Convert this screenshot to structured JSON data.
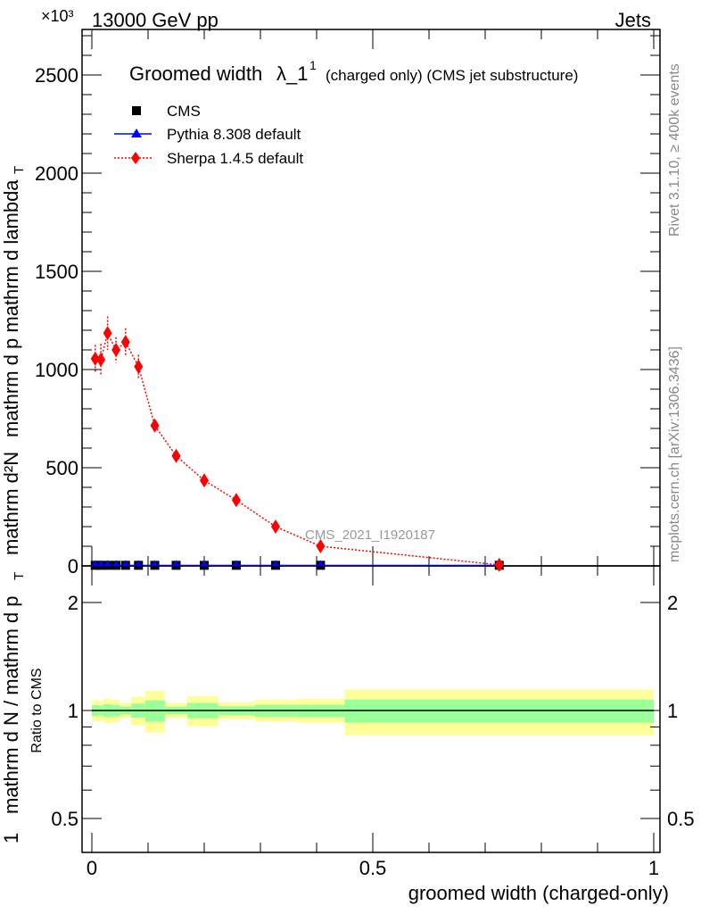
{
  "chart_data": [
    {
      "type": "scatter",
      "panel": "main",
      "title": "Groomed width λ_1^1 (charged only) (CMS jet substructure)",
      "title_main": "Groomed width",
      "title_lambda": "λ_1",
      "title_sup": "1",
      "title_rest": "(charged only) (CMS jet substructure)",
      "top_left_label": "13000 GeV pp",
      "top_right_label": "Jets",
      "exponent_label": "×10³",
      "ylabel_num1": "1",
      "ylabel_den1": "mathrm d N / mathrm d p",
      "ylabel_num2": "mathrm d²N",
      "ylabel_den2": "mathrm d p   mathrm d lambda",
      "ylabel_sub": "T",
      "xlim": [
        -0.0175,
        1.0
      ],
      "ylim": [
        0,
        2727
      ],
      "yticks": [
        "0",
        "500",
        "1000",
        "1500",
        "2000",
        "2500"
      ],
      "legend_position": "top-left",
      "watermark": "CMS_2021_I1920187",
      "bin_edges": [
        0,
        0.0125,
        0.02,
        0.035,
        0.05,
        0.07,
        0.095,
        0.13,
        0.17,
        0.225,
        0.29,
        0.365,
        0.45,
        1.0
      ],
      "x": [
        0.006,
        0.016,
        0.028,
        0.043,
        0.06,
        0.083,
        0.112,
        0.15,
        0.2,
        0.257,
        0.327,
        0.407,
        0.725
      ],
      "series": [
        {
          "name": "CMS",
          "color": "#000000",
          "marker": "square",
          "values": [
            3,
            3,
            3,
            3,
            3,
            3,
            3,
            3,
            3,
            3,
            3,
            3,
            3
          ]
        },
        {
          "name": "Pythia 8.308 default",
          "color": "#0000ff",
          "marker": "triangle",
          "values": [
            3,
            3,
            3,
            3,
            3,
            3,
            3,
            3,
            3,
            3,
            3,
            3,
            3
          ]
        },
        {
          "name": "Sherpa 1.4.5 default",
          "color": "#ff0000",
          "marker": "diamond",
          "values": [
            1055,
            1050,
            1185,
            1100,
            1140,
            1015,
            715,
            560,
            435,
            335,
            200,
            100,
            5
          ],
          "errors": [
            70,
            80,
            85,
            65,
            70,
            60,
            25,
            20,
            15,
            12,
            10,
            8,
            3
          ]
        }
      ],
      "side_label_top": "Rivet 3.1.10, ≥ 400k events",
      "side_label_bottom": "mcplots.cern.ch [arXiv:1306.3436]"
    },
    {
      "type": "area",
      "panel": "ratio",
      "ylabel": "Ratio to CMS",
      "xlabel": "groomed width (charged-only)",
      "yscale": "log",
      "ylim": [
        0.4,
        2.53
      ],
      "yticks": [
        "0.5",
        "1",
        "2"
      ],
      "yticks_right": [
        "0.5",
        "1",
        "2"
      ],
      "xticks": [
        "0",
        "0.5",
        "1"
      ],
      "bands": {
        "stat_color": "#99ff99",
        "total_color": "#ffff99",
        "total_lo": [
          0.934,
          0.937,
          0.921,
          0.927,
          0.953,
          0.909,
          0.868,
          0.953,
          0.904,
          0.946,
          0.932,
          0.925,
          0.853
        ],
        "total_hi": [
          1.067,
          1.061,
          1.079,
          1.071,
          1.049,
          1.092,
          1.134,
          1.049,
          1.096,
          1.055,
          1.069,
          1.077,
          1.143
        ],
        "stat_lo": [
          0.965,
          0.97,
          0.959,
          0.962,
          0.974,
          0.955,
          0.93,
          0.975,
          0.951,
          0.97,
          0.961,
          0.959,
          0.925
        ],
        "stat_hi": [
          1.035,
          1.031,
          1.041,
          1.037,
          1.025,
          1.045,
          1.067,
          1.025,
          1.049,
          1.027,
          1.037,
          1.037,
          1.073
        ]
      }
    }
  ]
}
